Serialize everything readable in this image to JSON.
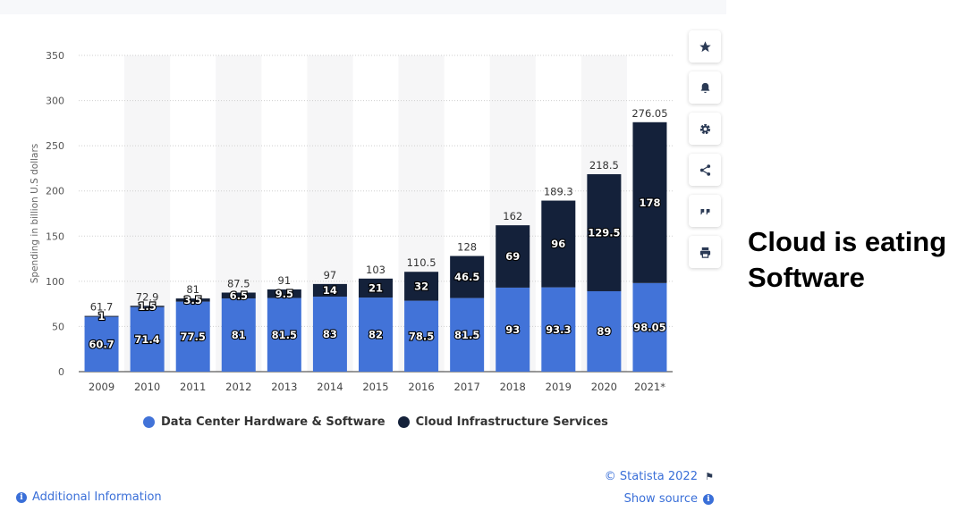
{
  "chart_data": {
    "type": "bar",
    "stacked": true,
    "categories": [
      "2009",
      "2010",
      "2011",
      "2012",
      "2013",
      "2014",
      "2015",
      "2016",
      "2017",
      "2018",
      "2019",
      "2020",
      "2021*"
    ],
    "series": [
      {
        "name": "Data Center Hardware & Software",
        "color": "#4273d8",
        "values": [
          60.7,
          71.4,
          77.5,
          81,
          81.5,
          83,
          82,
          78.5,
          81.5,
          93,
          93.3,
          89,
          98.05
        ]
      },
      {
        "name": "Cloud Infrastructure Services",
        "color": "#14213a",
        "values": [
          1,
          1.5,
          3.5,
          6.5,
          9.5,
          14,
          21,
          32,
          46.5,
          69,
          96,
          129.5,
          178
        ]
      }
    ],
    "totals": [
      "61.7",
      "72.9",
      "81",
      "87.5",
      "91",
      "97",
      "103",
      "110.5",
      "128",
      "162",
      "189.3",
      "218.5",
      "276.05"
    ],
    "ylabel": "Spending in billion U.S dollars",
    "ylim": [
      0,
      350
    ],
    "yticks": [
      0,
      50,
      100,
      150,
      200,
      250,
      300,
      350
    ],
    "grid": true,
    "legend_position": "bottom"
  },
  "legend": {
    "items": [
      {
        "label": "Data Center Hardware & Software",
        "color": "#4273d8"
      },
      {
        "label": "Cloud Infrastructure Services",
        "color": "#14213a"
      }
    ]
  },
  "toolbar": {
    "icons": [
      "star-icon",
      "bell-icon",
      "gear-icon",
      "share-icon",
      "quote-icon",
      "print-icon"
    ]
  },
  "footer": {
    "copyright": "© Statista 2022",
    "show_source": "Show source",
    "additional_info": "Additional Information"
  },
  "headline": {
    "line1": "Cloud is eating",
    "line2": "Software"
  }
}
